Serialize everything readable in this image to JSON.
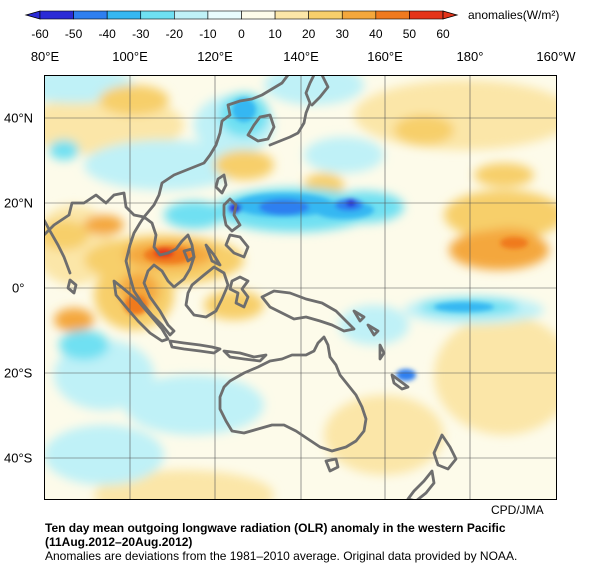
{
  "colorbar": {
    "ticks": [
      "-60",
      "-50",
      "-40",
      "-30",
      "-20",
      "-10",
      "0",
      "10",
      "20",
      "30",
      "40",
      "50",
      "60"
    ],
    "title": "anomalies(W/m²)",
    "colors": [
      "#2b2bd6",
      "#2f7ff0",
      "#35b7f2",
      "#6fe0f2",
      "#bff1f7",
      "#e9fbfd",
      "#fdfbea",
      "#fbe6a8",
      "#f7cf6b",
      "#f4a73c",
      "#f07a1f",
      "#e4341a"
    ]
  },
  "lon_labels": [
    "80°E",
    "100°E",
    "120°E",
    "140°E",
    "160°E",
    "180°",
    "160°W"
  ],
  "lat_labels": [
    "40°N",
    "20°N",
    "0°",
    "20°S",
    "40°S"
  ],
  "credit": "CPD/JMA",
  "caption": {
    "title": "Ten day mean outgoing longwave radiation (OLR) anomaly in the western Pacific (11Aug.2012–20Aug.2012)",
    "note": "Anomalies are deviations from the 1981–2010 average. Original data provided by NOAA."
  }
}
